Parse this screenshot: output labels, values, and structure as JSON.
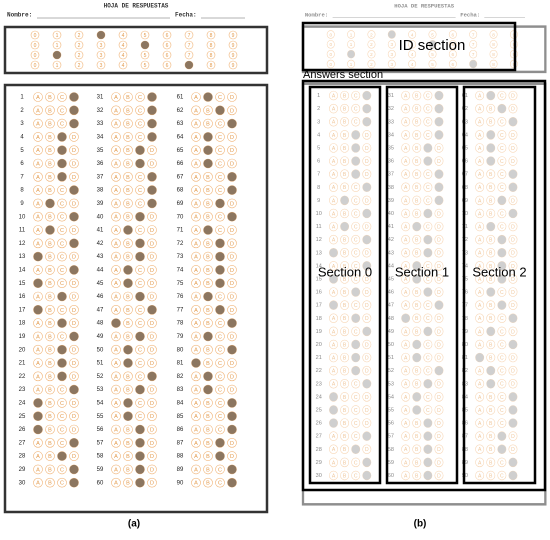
{
  "header": {
    "title": "HOJA DE RESPUESTAS",
    "name_label": "Nombre:",
    "date_label": "Fecha:"
  },
  "id_section": {
    "digits": [
      "0",
      "1",
      "2",
      "3",
      "4",
      "5",
      "6",
      "7",
      "8",
      "9"
    ],
    "marked": [
      3,
      5,
      1,
      7
    ]
  },
  "options": [
    "A",
    "B",
    "C",
    "D"
  ],
  "numbers": [
    1,
    2,
    3,
    4,
    5,
    6,
    7,
    8,
    9,
    10,
    11,
    12,
    13,
    14,
    15,
    16,
    17,
    18,
    19,
    20,
    21,
    22,
    23,
    24,
    25,
    26,
    27,
    28,
    29,
    30,
    31,
    32,
    33,
    34,
    35,
    36,
    37,
    38,
    39,
    40,
    41,
    42,
    43,
    44,
    45,
    46,
    47,
    48,
    49,
    50,
    51,
    52,
    53,
    54,
    55,
    56,
    57,
    58,
    59,
    60,
    61,
    62,
    63,
    64,
    65,
    66,
    67,
    68,
    69,
    70,
    71,
    72,
    73,
    74,
    75,
    76,
    77,
    78,
    79,
    80,
    81,
    82,
    83,
    84,
    85,
    86,
    87,
    88,
    89,
    90
  ],
  "marked": [
    3,
    3,
    3,
    2,
    2,
    2,
    2,
    3,
    1,
    3,
    1,
    3,
    0,
    3,
    0,
    2,
    0,
    2,
    3,
    2,
    2,
    2,
    3,
    0,
    0,
    0,
    3,
    2,
    3,
    3,
    3,
    3,
    3,
    3,
    2,
    2,
    3,
    3,
    3,
    2,
    1,
    2,
    2,
    1,
    1,
    2,
    3,
    0,
    2,
    1,
    1,
    3,
    2,
    1,
    1,
    2,
    2,
    2,
    2,
    2,
    1,
    2,
    3,
    1,
    1,
    1,
    3,
    3,
    2,
    3,
    1,
    2,
    2,
    2,
    2,
    1,
    2,
    3,
    1,
    3,
    0,
    1,
    1,
    3,
    3,
    3,
    2,
    2,
    3,
    3
  ],
  "annotations": {
    "id": "ID section",
    "answers": "Answers section",
    "sections": [
      "Section 0",
      "Section 1",
      "Section 2"
    ]
  },
  "captions": [
    "(a)",
    "(b)"
  ]
}
